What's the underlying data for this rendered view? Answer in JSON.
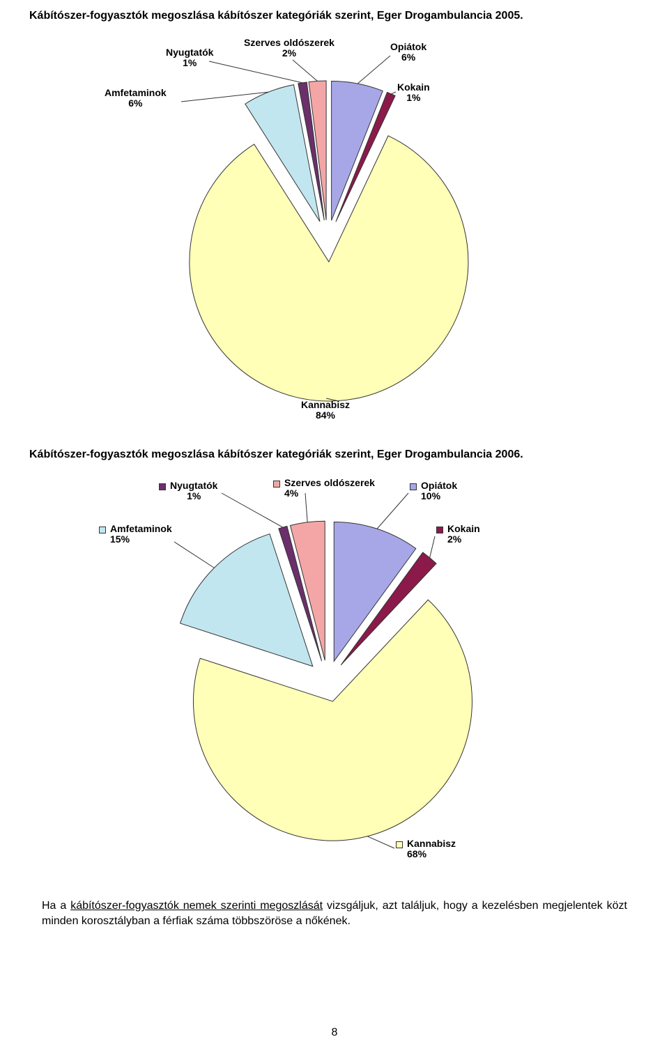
{
  "chart1": {
    "title": "Kábítószer-fogyasztók megoszlása kábítószer kategóriák szerint, Eger Drogambulancia 2005.",
    "radius": 200,
    "explode": 30,
    "stroke": "#333333",
    "colors": {
      "opiatok": "#a7a7e8",
      "kokain": "#8b1a4a",
      "kannabisz": "#ffffb8",
      "amfetaminok": "#c1e6ef",
      "nyugtatok": "#6b2f6b",
      "szerves": "#f4a6a6"
    },
    "slices": [
      {
        "name": "Opiátok",
        "pct": 6,
        "color_key": "opiatok"
      },
      {
        "name": "Kokain",
        "pct": 1,
        "color_key": "kokain"
      },
      {
        "name": "Kannabisz",
        "pct": 84,
        "color_key": "kannabisz"
      },
      {
        "name": "Amfetaminok",
        "pct": 6,
        "color_key": "amfetaminok"
      },
      {
        "name": "Nyugtatók",
        "pct": 1,
        "color_key": "nyugtatok"
      },
      {
        "name": "Szerves oldószerek",
        "pct": 2,
        "color_key": "szerves"
      }
    ],
    "labels": {
      "opiatok": "Opiátok\n6%",
      "kokain": "Kokain\n1%",
      "kannabisz": "Kannabisz\n84%",
      "amfetaminok": "Amfetaminok\n6%",
      "nyugtatok": "Nyugtatók\n1%",
      "szerves": "Szerves oldószerek\n2%"
    },
    "label_fontsize": 14,
    "title_fontsize": 16
  },
  "chart2": {
    "title": "Kábítószer-fogyasztók megoszlása kábítószer kategóriák szerint, Eger Drogambulancia 2006.",
    "radius": 200,
    "explode": 30,
    "stroke": "#333333",
    "colors": {
      "opiatok": "#a7a7e8",
      "kokain": "#8b1a4a",
      "kannabisz": "#ffffb8",
      "amfetaminok": "#c1e6ef",
      "nyugtatok": "#6b2f6b",
      "szerves": "#f4a6a6"
    },
    "slices": [
      {
        "name": "Opiátok",
        "pct": 10,
        "color_key": "opiatok"
      },
      {
        "name": "Kokain",
        "pct": 2,
        "color_key": "kokain"
      },
      {
        "name": "Kannabisz",
        "pct": 68,
        "color_key": "kannabisz"
      },
      {
        "name": "Amfetaminok",
        "pct": 15,
        "color_key": "amfetaminok"
      },
      {
        "name": "Nyugtatók",
        "pct": 1,
        "color_key": "nyugtatok"
      },
      {
        "name": "Szerves oldószerek",
        "pct": 4,
        "color_key": "szerves"
      }
    ],
    "labels": {
      "opiatok": "Opiátok\n10%",
      "kokain": "Kokain\n2%",
      "kannabisz": "Kannabisz\n68%",
      "amfetaminok": "Amfetaminok\n15%",
      "nyugtatok": "Nyugtatók\n1%",
      "szerves": "Szerves oldószerek\n4%"
    },
    "label_fontsize": 14,
    "title_fontsize": 16,
    "show_legend_squares": true
  },
  "body_text": {
    "prefix": "Ha a ",
    "underlined": "kábítószer-fogyasztók nemek szerinti megoszlását",
    "suffix": " vizsgáljuk, azt találjuk, hogy a kezelésben megjelentek közt minden korosztályban a férfiak száma többszöröse a nőkének.",
    "fontsize": 16
  },
  "page_number": "8"
}
